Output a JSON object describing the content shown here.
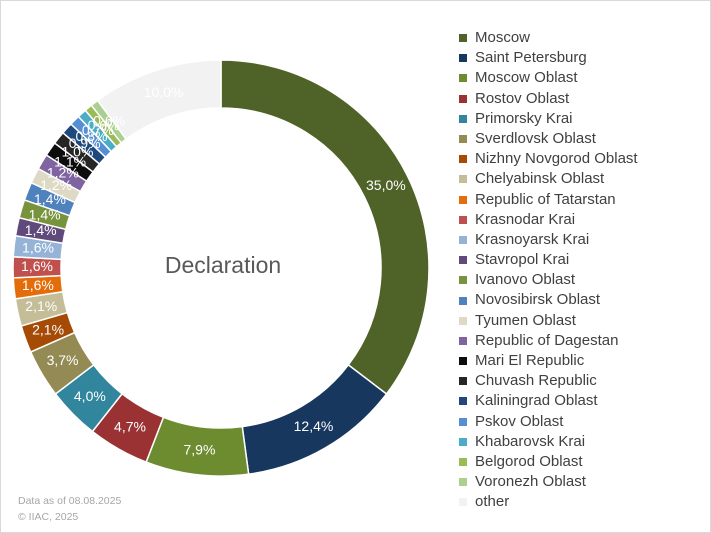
{
  "chart_data": {
    "type": "pie",
    "style": "donut",
    "center_label": "Declaration",
    "legend_position": "right",
    "slices": [
      {
        "label": "Moscow",
        "value": 35.0,
        "value_label": "35,0%",
        "color": "#4f6228"
      },
      {
        "label": "Saint Petersburg",
        "value": 12.4,
        "value_label": "12,4%",
        "color": "#17375e"
      },
      {
        "label": "Moscow Oblast",
        "value": 7.9,
        "value_label": "7,9%",
        "color": "#6d8b2f"
      },
      {
        "label": "Rostov Oblast",
        "value": 4.7,
        "value_label": "4,7%",
        "color": "#9a3234"
      },
      {
        "label": "Primorsky Krai",
        "value": 4.0,
        "value_label": "4,0%",
        "color": "#31859c"
      },
      {
        "label": "Sverdlovsk Oblast",
        "value": 3.7,
        "value_label": "3,7%",
        "color": "#948a54"
      },
      {
        "label": "Nizhny Novgorod Oblast",
        "value": 2.1,
        "value_label": "2,1%",
        "color": "#a54b05"
      },
      {
        "label": "Chelyabinsk Oblast",
        "value": 2.1,
        "value_label": "2,1%",
        "color": "#c4bd97"
      },
      {
        "label": "Republic of Tatarstan",
        "value": 1.6,
        "value_label": "1,6%",
        "color": "#e46c0a"
      },
      {
        "label": "Krasnodar Krai",
        "value": 1.6,
        "value_label": "1,6%",
        "color": "#c0504d"
      },
      {
        "label": "Krasnoyarsk Krai",
        "value": 1.6,
        "value_label": "1,6%",
        "color": "#95b3d7"
      },
      {
        "label": "Stavropol Krai",
        "value": 1.4,
        "value_label": "1,4%",
        "color": "#604a7b"
      },
      {
        "label": "Ivanovo Oblast",
        "value": 1.4,
        "value_label": "1,4%",
        "color": "#77933c"
      },
      {
        "label": "Novosibirsk Oblast",
        "value": 1.4,
        "value_label": "1,4%",
        "color": "#4f81bd"
      },
      {
        "label": "Tyumen Oblast",
        "value": 1.2,
        "value_label": "1,2%",
        "color": "#ddd9c4"
      },
      {
        "label": "Republic of Dagestan",
        "value": 1.2,
        "value_label": "1,2%",
        "color": "#8064a2"
      },
      {
        "label": "Mari El Republic",
        "value": 1.1,
        "value_label": "1,1%",
        "color": "#0d0d0d"
      },
      {
        "label": "Chuvash Republic",
        "value": 1.0,
        "value_label": "1,0%",
        "color": "#262626"
      },
      {
        "label": "Kaliningrad Oblast",
        "value": 0.9,
        "value_label": "0,9%",
        "color": "#1f497d"
      },
      {
        "label": "Pskov Oblast",
        "value": 0.8,
        "value_label": "0,8%",
        "color": "#558ed5"
      },
      {
        "label": "Khabarovsk Krai",
        "value": 0.7,
        "value_label": "0,7%",
        "color": "#4bacc6"
      },
      {
        "label": "Belgorod Oblast",
        "value": 0.6,
        "value_label": "0,6%",
        "color": "#9bbb59"
      },
      {
        "label": "Voronezh Oblast",
        "value": 0.6,
        "value_label": "0,6%",
        "color": "#a9d08e"
      },
      {
        "label": "other",
        "value": 10.0,
        "value_label": "10,0%",
        "color": "#f2f2f2"
      }
    ]
  },
  "footer": {
    "date": "Data as of 08.08.2025",
    "copyright": "© IIAC, 2025"
  }
}
